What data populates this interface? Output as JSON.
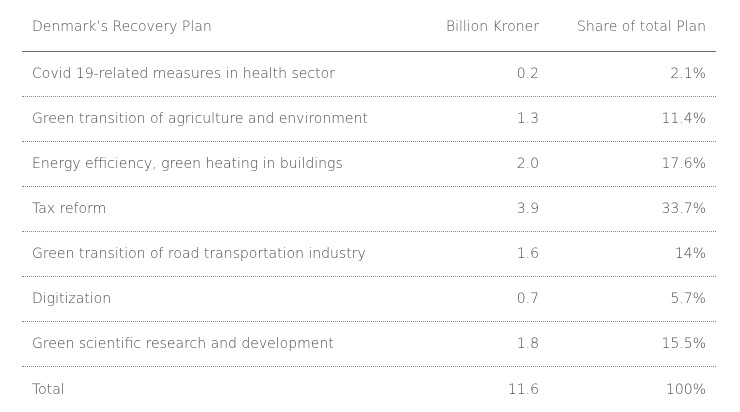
{
  "table": {
    "headers": {
      "plan": "Denmark’s Recovery Plan",
      "billion": "Billion Kroner",
      "share": "Share of total Plan"
    },
    "rows": [
      {
        "name": "Covid 19-related measures in health sector",
        "value": "0.2",
        "share": "2.1%"
      },
      {
        "name": "Green transition of agriculture and environment",
        "value": "1.3",
        "share": "11.4%"
      },
      {
        "name": "Energy efficiency, green heating in buildings",
        "value": "2.0",
        "share": "17.6%"
      },
      {
        "name": "Tax reform",
        "value": "3.9",
        "share": "33.7%"
      },
      {
        "name": "Green transition of road transportation industry",
        "value": "1.6",
        "share": "14%"
      },
      {
        "name": "Digitization",
        "value": "0.7",
        "share": "5.7%"
      },
      {
        "name": "Green scientific research and development",
        "value": "1.8",
        "share": "15.5%"
      },
      {
        "name": "Total",
        "value": "11.6",
        "share": "100%"
      }
    ]
  }
}
